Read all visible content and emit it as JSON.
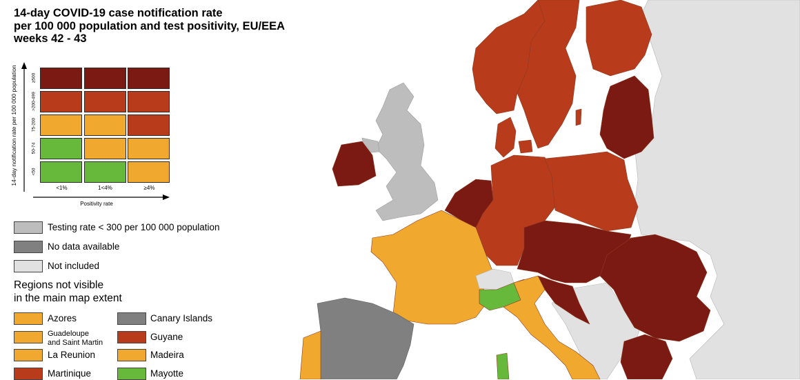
{
  "title": {
    "line1": "14-day COVID-19 case notification rate",
    "line2": "per 100 000 population and test positivity, EU/EEA",
    "line3": "weeks 42 - 43"
  },
  "matrix": {
    "y_axis_label": "14-day notification rate per 100 000 population",
    "x_axis_label": "Positivity rate",
    "rows": [
      "≥500",
      ">200-499",
      "75-200",
      "50-74",
      "<50"
    ],
    "columns": [
      "<1%",
      "1<4%",
      "≥4%"
    ],
    "cells": [
      [
        "dark-red",
        "dark-red",
        "dark-red"
      ],
      [
        "red",
        "red",
        "red"
      ],
      [
        "orange",
        "orange",
        "red"
      ],
      [
        "green",
        "orange",
        "orange"
      ],
      [
        "green",
        "green",
        "orange"
      ]
    ]
  },
  "colors": {
    "dark-red": "#7b1a12",
    "red": "#b83c1b",
    "orange": "#f0a92e",
    "green": "#66b93a",
    "grey": "#808080",
    "light-grey": "#bdbdbd",
    "not-included": "#e1e1e1",
    "sea": "#ffffff"
  },
  "legend": {
    "testing": "Testing rate < 300 per 100 000 population",
    "no_data": "No data available",
    "not_included": "Not included"
  },
  "regions": {
    "title_line1": "Regions not visible",
    "title_line2": "in the main map extent",
    "left": [
      {
        "label": "Azores",
        "color": "orange"
      },
      {
        "label": "Guadeloupe",
        "label2": "and Saint Martin",
        "color": "orange"
      },
      {
        "label": "La Reunion",
        "color": "orange"
      },
      {
        "label": "Martinique",
        "color": "red"
      }
    ],
    "right": [
      {
        "label": "Canary Islands",
        "color": "grey"
      },
      {
        "label": "Guyane",
        "color": "red"
      },
      {
        "label": "Madeira",
        "color": "orange"
      },
      {
        "label": "Mayotte",
        "color": "green"
      }
    ]
  },
  "map": {
    "regions": [
      {
        "id": "russia-belarus-east",
        "status": "not-included"
      },
      {
        "id": "uk",
        "status": "light-grey"
      },
      {
        "id": "ireland",
        "status": "dark-red"
      },
      {
        "id": "norway",
        "status": "red"
      },
      {
        "id": "sweden",
        "status": "red"
      },
      {
        "id": "finland",
        "status": "red"
      },
      {
        "id": "estonia-latvia-lithuania",
        "status": "dark-red"
      },
      {
        "id": "denmark",
        "status": "red"
      },
      {
        "id": "benelux",
        "status": "dark-red"
      },
      {
        "id": "germany",
        "status": "red"
      },
      {
        "id": "poland",
        "status": "red"
      },
      {
        "id": "czechia-slovakia-hungary-austria",
        "status": "dark-red"
      },
      {
        "id": "france",
        "status": "orange"
      },
      {
        "id": "switzerland",
        "status": "not-included"
      },
      {
        "id": "italy",
        "status": "orange"
      },
      {
        "id": "spain",
        "status": "grey"
      },
      {
        "id": "portugal",
        "status": "orange"
      },
      {
        "id": "romania-bulgaria",
        "status": "dark-red"
      },
      {
        "id": "croatia-slovenia",
        "status": "dark-red"
      },
      {
        "id": "balkans",
        "status": "not-included"
      },
      {
        "id": "greece",
        "status": "dark-red"
      }
    ]
  }
}
